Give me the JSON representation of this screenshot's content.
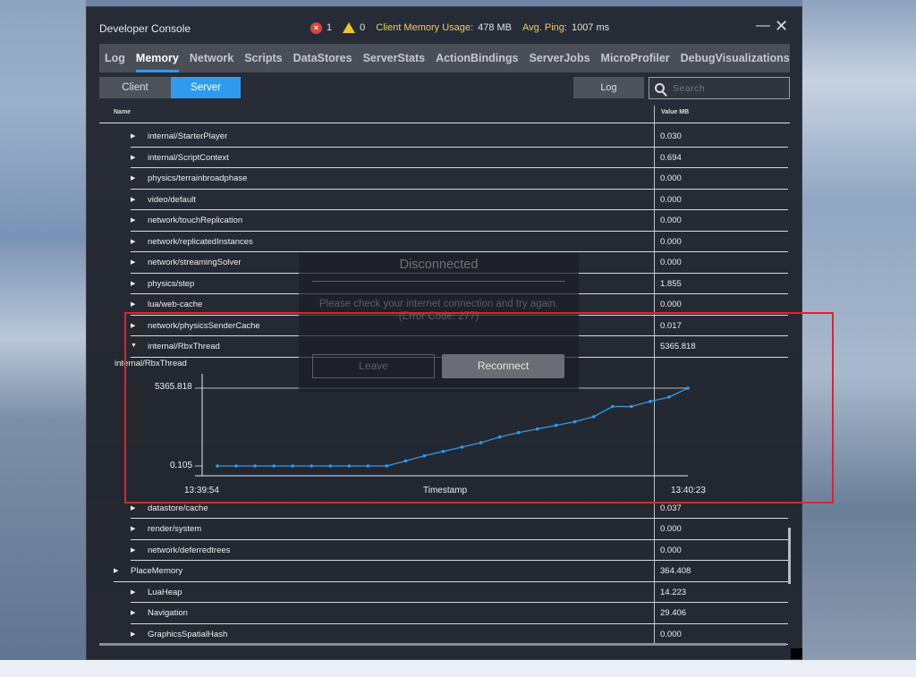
{
  "window": {
    "title": "Developer Console",
    "error_count": "1",
    "warning_count": "0",
    "memory_label": "Client Memory Usage:",
    "memory_value": "478 MB",
    "ping_label": "Avg. Ping:",
    "ping_value": "1007 ms"
  },
  "tabs": [
    {
      "label": "Log",
      "active": false
    },
    {
      "label": "Memory",
      "active": true
    },
    {
      "label": "Network",
      "active": false
    },
    {
      "label": "Scripts",
      "active": false
    },
    {
      "label": "DataStores",
      "active": false
    },
    {
      "label": "ServerStats",
      "active": false
    },
    {
      "label": "ActionBindings",
      "active": false
    },
    {
      "label": "ServerJobs",
      "active": false
    },
    {
      "label": "MicroProfiler",
      "active": false
    },
    {
      "label": "DebugVisualizations",
      "active": false
    }
  ],
  "toolbar": {
    "client_label": "Client",
    "server_label": "Server",
    "log_label": "Log",
    "search_placeholder": "Search"
  },
  "table": {
    "col_name": "Name",
    "col_value": "Value MB",
    "rows_top": [
      {
        "name": "internal/StarterPlayer",
        "value": "0.030"
      },
      {
        "name": "internal/ScriptContext",
        "value": "0.694"
      },
      {
        "name": "physics/terrainbroadphase",
        "value": "0.000"
      },
      {
        "name": "video/default",
        "value": "0.000"
      },
      {
        "name": "network/touchReplication",
        "value": "0.000"
      },
      {
        "name": "network/replicatedInstances",
        "value": "0.000"
      },
      {
        "name": "network/streamingSolver",
        "value": "0.000"
      },
      {
        "name": "physics/step",
        "value": "1.855"
      },
      {
        "name": "lua/web-cache",
        "value": "0.000"
      },
      {
        "name": "network/physicsSenderCache",
        "value": "0.017"
      },
      {
        "name": "internal/RbxThread",
        "value": "5365.818",
        "expanded": true
      }
    ],
    "rows_bottom": [
      {
        "name": "datastore/cache",
        "value": "0.037",
        "level": 2
      },
      {
        "name": "render/system",
        "value": "0.000",
        "level": 2
      },
      {
        "name": "network/deferredtrees",
        "value": "0.000",
        "level": 2
      },
      {
        "name": "PlaceMemory",
        "value": "364.408",
        "level": 1
      },
      {
        "name": "LuaHeap",
        "value": "14.223",
        "level": 2
      },
      {
        "name": "Navigation",
        "value": "29.406",
        "level": 2
      },
      {
        "name": "GraphicsSpatialHash",
        "value": "0.000",
        "level": 2
      }
    ]
  },
  "graph": {
    "title": "internal/RbxThread",
    "y_max_label": "5365.818",
    "y_min_label": "0.105",
    "x_start_label": "13:39:54",
    "x_end_label": "13:40:23",
    "x_axis_label": "Timestamp",
    "line_color": "#2f9bf0"
  },
  "chart_data": {
    "type": "line",
    "title": "internal/RbxThread",
    "xlabel": "Timestamp",
    "ylabel": "",
    "x_range": [
      "13:39:54",
      "13:40:23"
    ],
    "ylim": [
      0.105,
      5365.818
    ],
    "series": [
      {
        "values": [
          0.105,
          0.105,
          0.105,
          0.105,
          0.105,
          0.105,
          0.105,
          0.105,
          0.105,
          0.105,
          350,
          700,
          1000,
          1300,
          1600,
          2000,
          2300,
          2550,
          2800,
          3050,
          3400,
          4100,
          4100,
          4450,
          4750,
          5365.818
        ]
      }
    ]
  },
  "dialog": {
    "title": "Disconnected",
    "message": "Please check your internet connection and try again.",
    "error_code": "(Error Code: 277)",
    "leave_label": "Leave",
    "reconnect_label": "Reconnect"
  }
}
